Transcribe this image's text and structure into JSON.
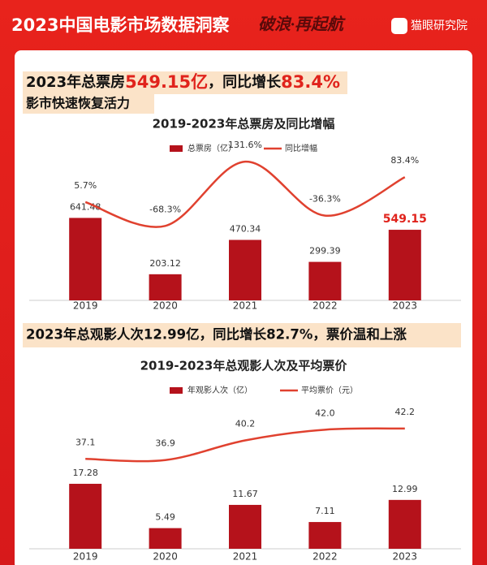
{
  "header": {
    "title": "2023中国电影市场数据洞察",
    "slogan": "破浪·再起航",
    "brand": "猫眼研究院"
  },
  "section1": {
    "headline": [
      "2023年总票房",
      "549.15亿",
      "，同比增长",
      "83.4%"
    ],
    "subheadline": "影市快速恢复活力"
  },
  "section2": {
    "headline": "2023年总观影人次12.99亿，同比增长82.7%，票价温和上涨"
  },
  "chart_data": [
    {
      "type": "bar",
      "title": "2019-2023年总票房及同比增幅",
      "categories": [
        "2019",
        "2020",
        "2021",
        "2022",
        "2023"
      ],
      "ylim": [
        0,
        1200
      ],
      "y2lim": [
        -300,
        180
      ],
      "series": [
        {
          "name": "总票房（亿）",
          "type": "bar",
          "color": "#b5121b",
          "values": [
            641.48,
            203.12,
            470.34,
            299.39,
            549.15
          ]
        },
        {
          "name": "同比增幅",
          "type": "line",
          "axis": "y2",
          "color": "#e0412f",
          "values": [
            5.7,
            -68.3,
            131.6,
            -36.3,
            83.4
          ],
          "value_labels": [
            "5.7%",
            "-68.3%",
            "131.6%",
            "-36.3%",
            "83.4%"
          ]
        }
      ]
    },
    {
      "type": "bar",
      "title": "2019-2023年总观影人次及平均票价",
      "categories": [
        "2019",
        "2020",
        "2021",
        "2022",
        "2023"
      ],
      "ylim": [
        0,
        38
      ],
      "y2lim": [
        22,
        46
      ],
      "series": [
        {
          "name": "年观影人次（亿）",
          "type": "bar",
          "color": "#b5121b",
          "values": [
            17.28,
            5.49,
            11.67,
            7.11,
            12.99
          ]
        },
        {
          "name": "平均票价（元）",
          "type": "line",
          "axis": "y2",
          "color": "#e0412f",
          "values": [
            37.1,
            36.9,
            40.2,
            42.0,
            42.2
          ],
          "value_labels": [
            "37.1",
            "36.9",
            "40.2",
            "42.0",
            "42.2"
          ]
        }
      ]
    }
  ]
}
